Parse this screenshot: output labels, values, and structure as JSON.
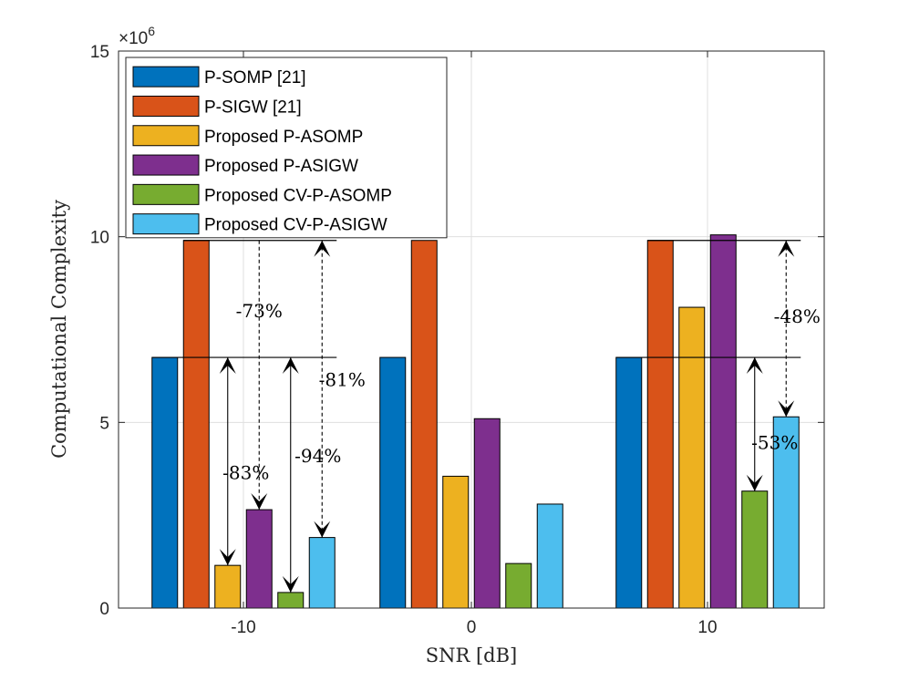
{
  "chart_data": {
    "type": "bar",
    "title": "",
    "xlabel": "SNR [dB]",
    "ylabel": "Computational Complexity",
    "y_exponent_label": "×10",
    "y_exponent_power": "6",
    "y_scale": 1000000,
    "ylim": [
      0,
      15000000
    ],
    "yticks": [
      0,
      5000000,
      10000000,
      15000000
    ],
    "ytick_labels": [
      "0",
      "5",
      "10",
      "15"
    ],
    "categories": [
      "-10",
      "0",
      "10"
    ],
    "grid": true,
    "legend_position": "top-left",
    "series": [
      {
        "name": "P-SOMP [21]",
        "color": "#0072BD",
        "values": [
          6750000,
          6750000,
          6750000
        ]
      },
      {
        "name": "P-SIGW [21]",
        "color": "#D95319",
        "values": [
          9900000,
          9900000,
          9900000
        ]
      },
      {
        "name": "Proposed P-ASOMP",
        "color": "#EDB120",
        "values": [
          1150000,
          3550000,
          8100000
        ]
      },
      {
        "name": "Proposed P-ASIGW",
        "color": "#7E2F8E",
        "values": [
          2650000,
          5100000,
          10050000
        ]
      },
      {
        "name": "Proposed CV-P-ASOMP",
        "color": "#77AC30",
        "values": [
          420000,
          1200000,
          3150000
        ]
      },
      {
        "name": "Proposed CV-P-ASIGW",
        "color": "#4DBEEE",
        "values": [
          1900000,
          2800000,
          5150000
        ]
      }
    ],
    "annotations": [
      {
        "text": "-73%",
        "category": 0,
        "from_series": 1,
        "to_series": 3,
        "dashed": true,
        "arrow_at": 3,
        "x_offset_bar": 3,
        "label_y": 8000000,
        "label_dx": 0
      },
      {
        "text": "-83%",
        "category": 0,
        "from_series": 0,
        "to_series": 2,
        "dashed": false,
        "arrow_at": "both",
        "x_offset_bar": 2,
        "label_y": 3650000,
        "label_dx": 20
      },
      {
        "text": "-94%",
        "category": 0,
        "from_series": 0,
        "to_series": 4,
        "dashed": false,
        "arrow_at": "both",
        "x_offset_bar": 4,
        "label_y": 4100000,
        "label_dx": 30
      },
      {
        "text": "-81%",
        "category": 0,
        "from_series": 1,
        "to_series": 5,
        "dashed": true,
        "arrow_at": "both",
        "x_offset_bar": 5,
        "label_y": 6150000,
        "label_dx": 22
      },
      {
        "text": "-48%",
        "category": 2,
        "from_series": 1,
        "to_series": 5,
        "dashed": true,
        "arrow_at": "both",
        "x_offset_bar": 5,
        "label_y": 7850000,
        "label_dx": 12
      },
      {
        "text": "-53%",
        "category": 2,
        "from_series": 0,
        "to_series": 4,
        "dashed": false,
        "arrow_at": "both",
        "x_offset_bar": 4,
        "label_y": 4450000,
        "label_dx": 22
      }
    ],
    "reference_lines": [
      {
        "category": 0,
        "from_series": 1,
        "to_series": 5,
        "value_series": 1
      },
      {
        "category": 0,
        "from_series": 0,
        "to_series": 5,
        "value_series": 0
      },
      {
        "category": 2,
        "from_series": 1,
        "to_series": 5,
        "value_series": 1
      },
      {
        "category": 2,
        "from_series": 0,
        "to_series": 5,
        "value_series": 0
      }
    ]
  }
}
